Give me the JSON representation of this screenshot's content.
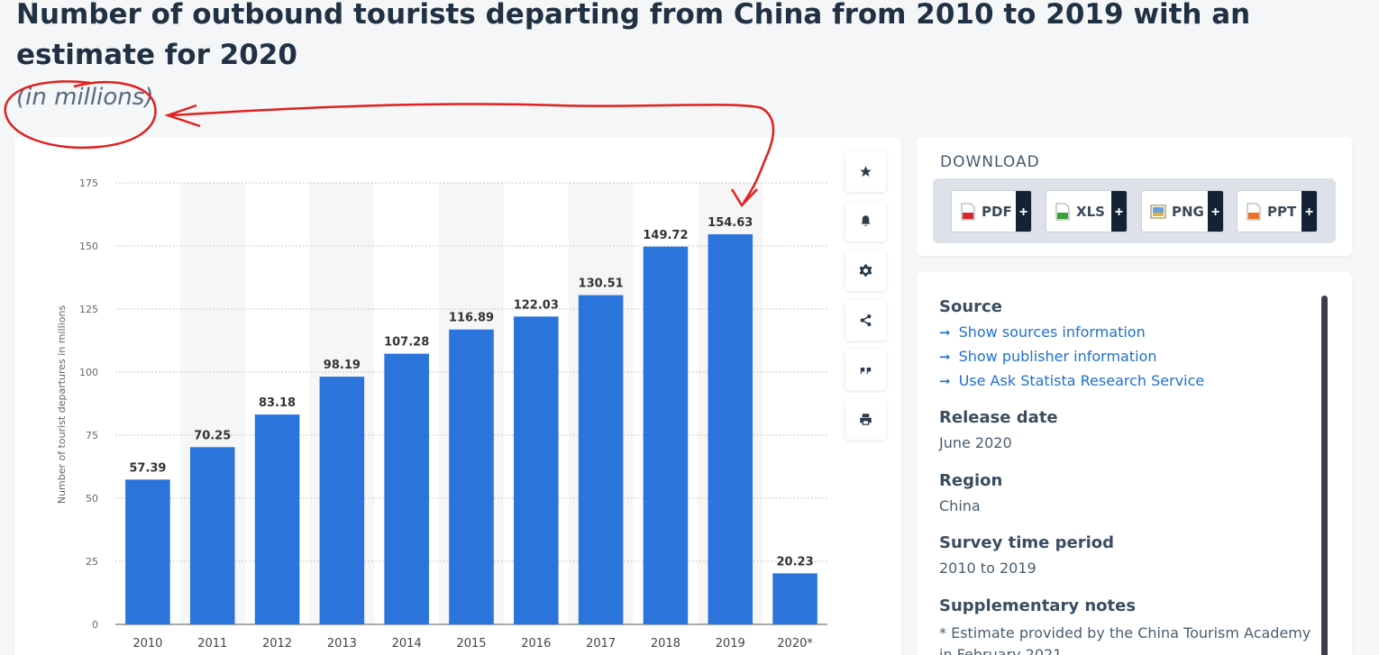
{
  "header": {
    "title": "Number of outbound tourists departing from China from 2010 to 2019 with an estimate for 2020",
    "subtitle": "(in millions)"
  },
  "chart_data": {
    "type": "bar",
    "categories": [
      "2010",
      "2011",
      "2012",
      "2013",
      "2014",
      "2015",
      "2016",
      "2017",
      "2018",
      "2019",
      "2020*"
    ],
    "values": [
      57.39,
      70.25,
      83.18,
      98.19,
      107.28,
      116.89,
      122.03,
      130.51,
      149.72,
      154.63,
      20.23
    ],
    "value_labels": [
      "57.39",
      "70.25",
      "83.18",
      "98.19",
      "107.28",
      "116.89",
      "122.03",
      "130.51",
      "149.72",
      "154.63",
      "20.23"
    ],
    "ylabel": "Number of tourist departures in millions",
    "xlabel": "",
    "ylim": [
      0,
      175
    ],
    "yticks": [
      0,
      25,
      50,
      75,
      100,
      125,
      150,
      175
    ],
    "grid": true,
    "bar_color": "#2a74dc"
  },
  "toolbar": {
    "buttons": [
      {
        "name": "favorite",
        "icon": "star-icon"
      },
      {
        "name": "notify",
        "icon": "bell-icon"
      },
      {
        "name": "settings",
        "icon": "gear-icon"
      },
      {
        "name": "share",
        "icon": "share-icon"
      },
      {
        "name": "cite",
        "icon": "quote-icon"
      },
      {
        "name": "print",
        "icon": "printer-icon"
      }
    ]
  },
  "download": {
    "heading": "DOWNLOAD",
    "pdf_label": "PDF",
    "xls_label": "XLS",
    "png_label": "PNG",
    "ppt_label": "PPT",
    "plus": "+"
  },
  "info": {
    "source_heading": "Source",
    "link_sources": "Show sources information",
    "link_publisher": "Show publisher information",
    "link_research": "Use Ask Statista Research Service",
    "release_heading": "Release date",
    "release_value": "June 2020",
    "region_heading": "Region",
    "region_value": "China",
    "survey_heading": "Survey time period",
    "survey_value": "2010 to 2019",
    "notes_heading": "Supplementary notes",
    "notes_value": "* Estimate provided by the China Tourism Academy in February 2021"
  },
  "colors": {
    "accent": "#2a74dc",
    "annotation": "#e0201e",
    "link": "#1f6fd1"
  }
}
